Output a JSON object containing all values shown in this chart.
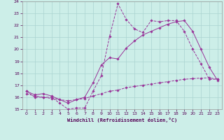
{
  "xlabel": "Windchill (Refroidissement éolien,°C)",
  "bg_color": "#cceee8",
  "grid_color": "#aad4d0",
  "line_color": "#993399",
  "xlim": [
    -0.5,
    23.5
  ],
  "ylim": [
    15,
    24
  ],
  "xticks": [
    0,
    1,
    2,
    3,
    4,
    5,
    6,
    7,
    8,
    9,
    10,
    11,
    12,
    13,
    14,
    15,
    16,
    17,
    18,
    19,
    20,
    21,
    22,
    23
  ],
  "yticks": [
    15,
    16,
    17,
    18,
    19,
    20,
    21,
    22,
    23,
    24
  ],
  "series1_x": [
    0,
    1,
    2,
    3,
    4,
    5,
    6,
    7,
    8,
    9,
    10,
    11,
    12,
    13,
    14,
    15,
    16,
    17,
    18,
    19,
    20,
    21,
    22,
    23
  ],
  "series1_y": [
    16.5,
    16.0,
    16.0,
    16.0,
    15.5,
    15.0,
    15.1,
    15.1,
    16.5,
    17.8,
    21.1,
    23.8,
    22.5,
    21.7,
    21.4,
    22.4,
    22.3,
    22.4,
    22.4,
    21.5,
    20.0,
    18.8,
    17.5,
    17.5
  ],
  "series2_x": [
    0,
    1,
    2,
    3,
    4,
    5,
    6,
    7,
    8,
    9,
    10,
    11,
    12,
    13,
    14,
    15,
    16,
    17,
    18,
    19,
    20,
    21,
    22,
    23
  ],
  "series2_y": [
    16.5,
    16.2,
    16.3,
    16.1,
    15.8,
    15.5,
    15.8,
    16.0,
    17.2,
    18.7,
    19.3,
    19.2,
    20.1,
    20.7,
    21.2,
    21.5,
    21.8,
    22.1,
    22.3,
    22.4,
    21.5,
    20.0,
    18.5,
    17.4
  ],
  "series3_x": [
    0,
    1,
    2,
    3,
    4,
    5,
    6,
    7,
    8,
    9,
    10,
    11,
    12,
    13,
    14,
    15,
    16,
    17,
    18,
    19,
    20,
    21,
    22,
    23
  ],
  "series3_y": [
    16.3,
    16.1,
    16.0,
    15.9,
    15.8,
    15.7,
    15.8,
    15.9,
    16.1,
    16.3,
    16.5,
    16.6,
    16.8,
    16.9,
    17.0,
    17.1,
    17.2,
    17.3,
    17.4,
    17.5,
    17.55,
    17.6,
    17.62,
    17.5
  ]
}
